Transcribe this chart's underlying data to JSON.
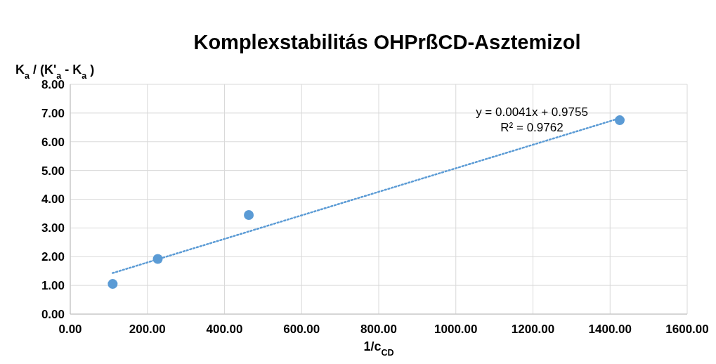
{
  "chart_data": {
    "type": "scatter",
    "title": "Komplexstabilitás OHPrßCD-Asztemizol",
    "xlabel": "1/c$_{CD}$",
    "ylabel": "K$_{a}$ / (K'$_{a}$ - K$_{a}$ )",
    "series": [
      {
        "color": "#5b9bd5",
        "x": [
          110,
          227,
          463,
          1425
        ],
        "values": [
          1.05,
          1.92,
          3.45,
          6.75
        ],
        "marker": "circle"
      },
      {
        "type": "line",
        "color": "#5b9bd5",
        "x": [
          110,
          1425
        ],
        "values": [
          1.43,
          6.82
        ],
        "line_style": "dotted"
      }
    ],
    "annotations": [
      "y = 0.0041x + 0.9755",
      "R² = 0.9762"
    ],
    "xlim": [
      0,
      1600
    ],
    "ylim": [
      0,
      8
    ],
    "xticks": [
      {
        "value": 0,
        "label": "0.00"
      },
      {
        "value": 200,
        "label": "200.00"
      },
      {
        "value": 400,
        "label": "400.00"
      },
      {
        "value": 600,
        "label": "600.00"
      },
      {
        "value": 800,
        "label": "800.00"
      },
      {
        "value": 1000,
        "label": "1000.00"
      },
      {
        "value": 1200,
        "label": "1200.00"
      },
      {
        "value": 1400,
        "label": "1400.00"
      },
      {
        "value": 1600,
        "label": "1600.00"
      }
    ],
    "yticks": [
      {
        "value": 0,
        "label": "0.00"
      },
      {
        "value": 1,
        "label": "1.00"
      },
      {
        "value": 2,
        "label": "2.00"
      },
      {
        "value": 3,
        "label": "3.00"
      },
      {
        "value": 4,
        "label": "4.00"
      },
      {
        "value": 5,
        "label": "5.00"
      },
      {
        "value": 6,
        "label": "6.00"
      },
      {
        "value": 7,
        "label": "7.00"
      },
      {
        "value": 8,
        "label": "8.00"
      }
    ],
    "grid": true
  }
}
